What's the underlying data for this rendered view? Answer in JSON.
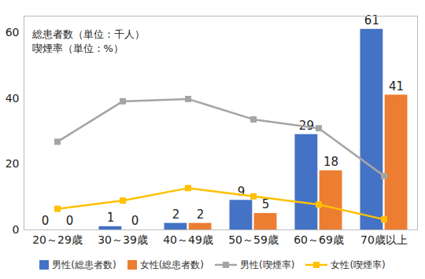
{
  "chart_data": {
    "type": "bar",
    "annotations": [
      "総患者数（単位：千人）",
      "喫煙率（単位：%）"
    ],
    "categories": [
      "20～29歳",
      "30～39歳",
      "40～49歳",
      "50～59歳",
      "60～69歳",
      "70歳以上"
    ],
    "series": [
      {
        "name": "男性(総患者数)",
        "type": "bar",
        "color": "#4472c4",
        "data_labels": true,
        "values": [
          0,
          1,
          2,
          9,
          29,
          61
        ]
      },
      {
        "name": "女性(総患者数)",
        "type": "bar",
        "color": "#ed7d31",
        "data_labels": true,
        "values": [
          0,
          0,
          2,
          5,
          18,
          41
        ]
      },
      {
        "name": "男性(喫煙率)",
        "type": "line",
        "color": "#a5a5a5",
        "marker": "square",
        "line_style": "solid",
        "values": [
          26.8,
          39.1,
          39.8,
          33.6,
          30.9,
          16.4
        ]
      },
      {
        "name": "女性(喫煙率)",
        "type": "line",
        "color": "#ffc000",
        "marker": "square",
        "line_style": "solid",
        "values": [
          6.4,
          8.9,
          12.7,
          10.2,
          7.7,
          3.2
        ]
      }
    ],
    "ylim": [
      0,
      65
    ],
    "yticks": [
      0,
      20,
      40,
      60
    ],
    "grid": false,
    "legend": "bottom"
  }
}
